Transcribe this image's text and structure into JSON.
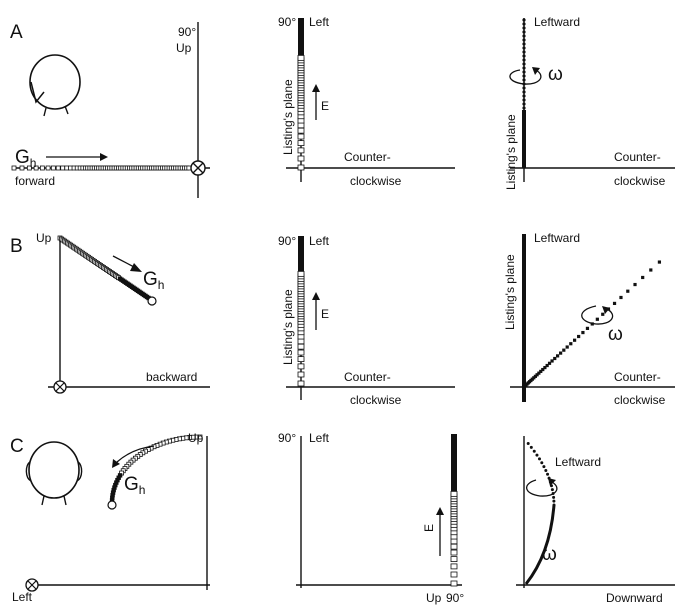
{
  "panels": {
    "A": {
      "letter": "A",
      "left": {
        "deg": "90°",
        "up": "Up",
        "gh": "G",
        "gh_sub": "h",
        "forward": "forward"
      },
      "middle": {
        "deg": "90°",
        "left": "Left",
        "listing": "Listing's plane",
        "e": "E",
        "counter1": "Counter-",
        "counter2": "clockwise"
      },
      "right": {
        "leftward": "Leftward",
        "omega": "ω",
        "listing": "Listing's plane",
        "counter1": "Counter-",
        "counter2": "clockwise"
      }
    },
    "B": {
      "letter": "B",
      "left": {
        "up": "Up",
        "gh": "G",
        "gh_sub": "h",
        "backward": "backward"
      },
      "middle": {
        "deg": "90°",
        "left": "Left",
        "listing": "Listing's plane",
        "e": "E",
        "counter1": "Counter-",
        "counter2": "clockwise"
      },
      "right": {
        "leftward": "Leftward",
        "omega": "ω",
        "listing": "Listing's plane",
        "counter1": "Counter-",
        "counter2": "clockwise"
      }
    },
    "C": {
      "letter": "C",
      "left": {
        "up": "Up",
        "gh": "G",
        "gh_sub": "h",
        "left": "Left"
      },
      "middle": {
        "deg_left": "90°",
        "left": "Left",
        "e": "E",
        "up": "Up",
        "deg_bottom": "90°"
      },
      "right": {
        "leftward": "Leftward",
        "omega": "ω",
        "downward": "Downward"
      }
    }
  }
}
